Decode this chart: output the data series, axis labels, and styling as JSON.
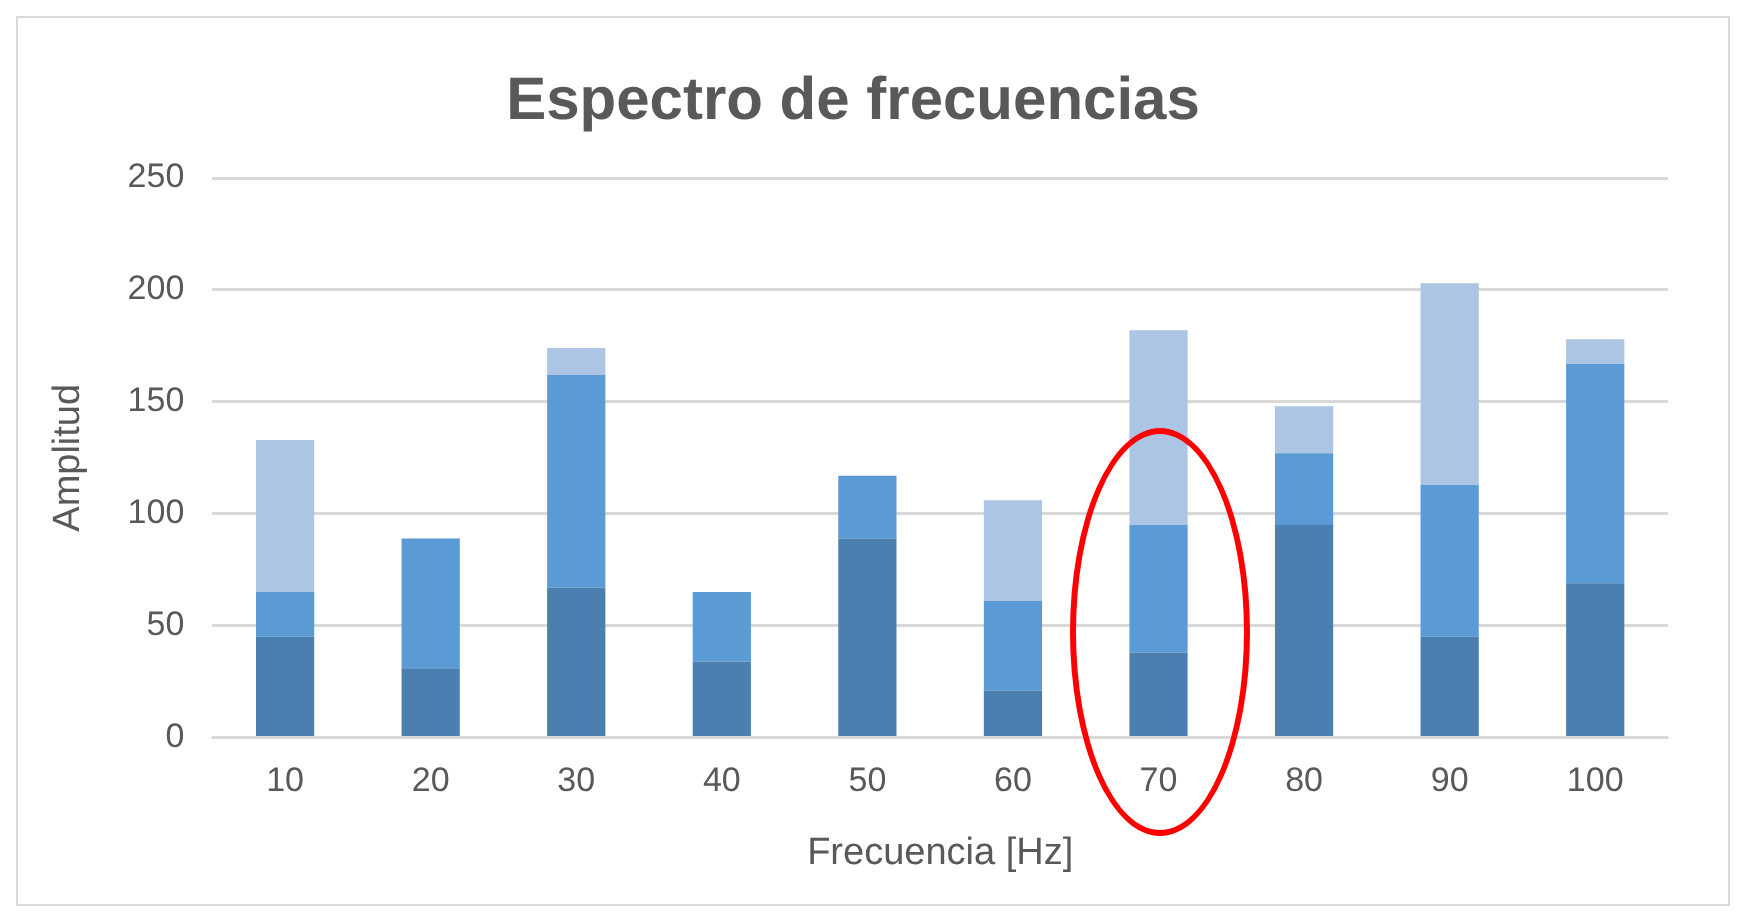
{
  "chart_data": {
    "type": "bar",
    "title": "Espectro de frecuencias",
    "xlabel": "Frecuencia [Hz]",
    "ylabel": "Amplitud",
    "categories": [
      "10",
      "20",
      "30",
      "40",
      "50",
      "60",
      "70",
      "80",
      "90",
      "100"
    ],
    "stacked": true,
    "ylim": [
      0,
      250
    ],
    "yticks": [
      0,
      50,
      100,
      150,
      200,
      250
    ],
    "grid": "y",
    "legend": false,
    "series": [
      {
        "color": "#4a7fb0",
        "values": [
          45,
          31,
          67,
          34,
          89,
          21,
          38,
          95,
          45,
          69
        ]
      },
      {
        "color": "#5b9bd5",
        "values": [
          20,
          58,
          95,
          31,
          28,
          40,
          57,
          32,
          68,
          98
        ]
      },
      {
        "color": "#adc5e5",
        "values": [
          68,
          null,
          12,
          null,
          null,
          45,
          87,
          21,
          90,
          11
        ]
      }
    ]
  }
}
